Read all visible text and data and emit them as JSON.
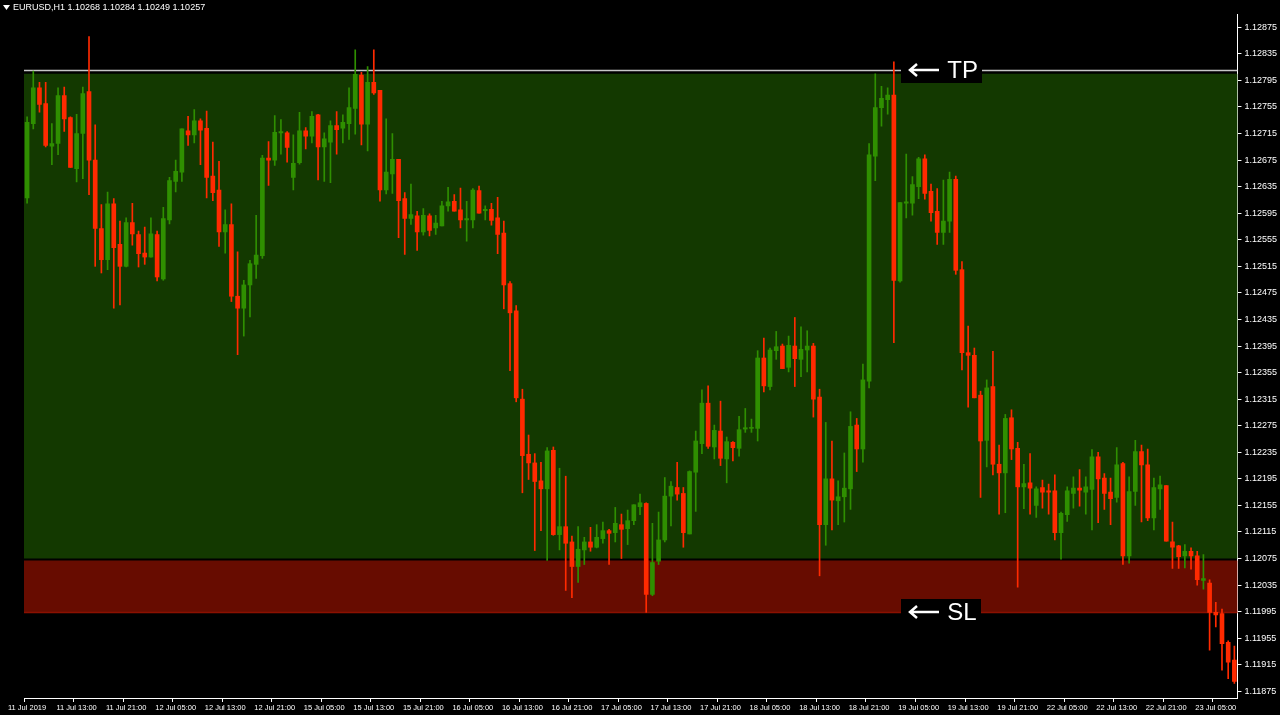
{
  "chart_data": {
    "type": "candlestick",
    "title": "EURUSD,H1  1.10268 1.10284 1.10249 1.10257",
    "categories": [
      "11 Jul 2019",
      null,
      null,
      null,
      null,
      null,
      null,
      null,
      "11 Jul 13:00",
      null,
      null,
      null,
      null,
      null,
      null,
      null,
      "11 Jul 21:00",
      null,
      null,
      null,
      null,
      null,
      null,
      null,
      "12 Jul 05:00",
      null,
      null,
      null,
      null,
      null,
      null,
      null,
      "12 Jul 13:00",
      null,
      null,
      null,
      null,
      null,
      null,
      null,
      "12 Jul 21:00",
      null,
      null,
      null,
      null,
      null,
      null,
      null,
      "15 Jul 05:00",
      null,
      null,
      null,
      null,
      null,
      null,
      null,
      "15 Jul 13:00",
      null,
      null,
      null,
      null,
      null,
      null,
      null,
      "15 Jul 21:00",
      null,
      null,
      null,
      null,
      null,
      null,
      null,
      "16 Jul 05:00",
      null,
      null,
      null,
      null,
      null,
      null,
      null,
      "16 Jul 13:00",
      null,
      null,
      null,
      null,
      null,
      null,
      null,
      "16 Jul 21:00",
      null,
      null,
      null,
      null,
      null,
      null,
      null,
      "17 Jul 05:00",
      null,
      null,
      null,
      null,
      null,
      null,
      null,
      "17 Jul 13:00",
      null,
      null,
      null,
      null,
      null,
      null,
      null,
      "17 Jul 21:00",
      null,
      null,
      null,
      null,
      null,
      null,
      null,
      "18 Jul 05:00",
      null,
      null,
      null,
      null,
      null,
      null,
      null,
      "18 Jul 13:00",
      null,
      null,
      null,
      null,
      null,
      null,
      null,
      "18 Jul 21:00",
      null,
      null,
      null,
      null,
      null,
      null,
      null,
      "19 Jul 05:00",
      null,
      null,
      null,
      null,
      null,
      null,
      null,
      "19 Jul 13:00",
      null,
      null,
      null,
      null,
      null,
      null,
      null,
      "19 Jul 21:00",
      null,
      null,
      null,
      null,
      null,
      null,
      null,
      "22 Jul 05:00",
      null,
      null,
      null,
      null,
      null,
      null,
      null,
      "22 Jul 13:00",
      null,
      null,
      null,
      null,
      null,
      null,
      null,
      "22 Jul 21:00",
      null,
      null,
      null,
      null,
      null,
      null,
      null,
      "23 Jul 05:00",
      null,
      null,
      null
    ],
    "ohlc": [
      [
        1.12618,
        1.1274,
        1.1261,
        1.12732
      ],
      [
        1.1273,
        1.12809,
        1.12722,
        1.12784
      ],
      [
        1.12784,
        1.12792,
        1.12747,
        1.12759
      ],
      [
        1.1276,
        1.12792,
        1.12695,
        1.12697
      ],
      [
        1.12696,
        1.1273,
        1.12668,
        1.127
      ],
      [
        1.127,
        1.12784,
        1.12683,
        1.12772
      ],
      [
        1.12772,
        1.12785,
        1.12718,
        1.12737
      ],
      [
        1.12739,
        1.1274,
        1.12664,
        1.12664
      ],
      [
        1.12662,
        1.12744,
        1.12642,
        1.12715
      ],
      [
        1.12715,
        1.12785,
        1.12647,
        1.12775
      ],
      [
        1.12778,
        1.12861,
        1.12623,
        1.12675
      ],
      [
        1.12675,
        1.12728,
        1.12515,
        1.12572
      ],
      [
        1.12572,
        1.12608,
        1.12505,
        1.12525
      ],
      [
        1.12525,
        1.12627,
        1.1251,
        1.12609
      ],
      [
        1.12609,
        1.12617,
        1.12452,
        1.12543
      ],
      [
        1.12548,
        1.12583,
        1.12457,
        1.12515
      ],
      [
        1.12515,
        1.12588,
        1.12514,
        1.12581
      ],
      [
        1.12581,
        1.1261,
        1.12547,
        1.12564
      ],
      [
        1.12563,
        1.12568,
        1.12514,
        1.12534
      ],
      [
        1.12535,
        1.12574,
        1.12518,
        1.12529
      ],
      [
        1.12529,
        1.12588,
        1.12529,
        1.12564
      ],
      [
        1.12563,
        1.12568,
        1.12493,
        1.12499
      ],
      [
        1.12496,
        1.12604,
        1.12494,
        1.12587
      ],
      [
        1.12585,
        1.12649,
        1.12579,
        1.12644
      ],
      [
        1.12643,
        1.12675,
        1.12627,
        1.12658
      ],
      [
        1.12657,
        1.12722,
        1.12643,
        1.12722
      ],
      [
        1.12719,
        1.12741,
        1.12697,
        1.12713
      ],
      [
        1.12713,
        1.12751,
        1.12701,
        1.12734
      ],
      [
        1.12734,
        1.12737,
        1.12668,
        1.1272
      ],
      [
        1.12723,
        1.12749,
        1.12618,
        1.12649
      ],
      [
        1.12651,
        1.12702,
        1.12614,
        1.12626
      ],
      [
        1.1263,
        1.12673,
        1.12545,
        1.12567
      ],
      [
        1.12567,
        1.126,
        1.12535,
        1.12578
      ],
      [
        1.12578,
        1.12609,
        1.12462,
        1.1247
      ],
      [
        1.1247,
        1.12537,
        1.12382,
        1.12452
      ],
      [
        1.12452,
        1.12494,
        1.1241,
        1.12487
      ],
      [
        1.12487,
        1.12524,
        1.12439,
        1.12519
      ],
      [
        1.12518,
        1.12592,
        1.12497,
        1.12532
      ],
      [
        1.12531,
        1.12682,
        1.12527,
        1.12678
      ],
      [
        1.12678,
        1.12703,
        1.12637,
        1.12675
      ],
      [
        1.12675,
        1.12742,
        1.12667,
        1.12717
      ],
      [
        1.12716,
        1.12736,
        1.12684,
        1.12718
      ],
      [
        1.12716,
        1.12718,
        1.12672,
        1.12694
      ],
      [
        1.12649,
        1.12713,
        1.1263,
        1.1267
      ],
      [
        1.12671,
        1.12747,
        1.12669,
        1.12719
      ],
      [
        1.12719,
        1.12724,
        1.12692,
        1.12711
      ],
      [
        1.12711,
        1.12748,
        1.12701,
        1.12741
      ],
      [
        1.12743,
        1.12744,
        1.12645,
        1.12695
      ],
      [
        1.12695,
        1.12716,
        1.12643,
        1.12707
      ],
      [
        1.12702,
        1.12734,
        1.12641,
        1.12727
      ],
      [
        1.12727,
        1.12748,
        1.12684,
        1.12721
      ],
      [
        1.12723,
        1.12743,
        1.12701,
        1.12732
      ],
      [
        1.1273,
        1.12784,
        1.12706,
        1.12754
      ],
      [
        1.12753,
        1.12841,
        1.12714,
        1.12804
      ],
      [
        1.12803,
        1.12807,
        1.12698,
        1.12729
      ],
      [
        1.12729,
        1.12816,
        1.12689,
        1.12792
      ],
      [
        1.12792,
        1.12841,
        1.12774,
        1.12776
      ],
      [
        1.1278,
        1.1278,
        1.12613,
        1.1263
      ],
      [
        1.1263,
        1.12737,
        1.12624,
        1.12657
      ],
      [
        1.12654,
        1.12715,
        1.12625,
        1.12676
      ],
      [
        1.12676,
        1.12676,
        1.12558,
        1.12614
      ],
      [
        1.12617,
        1.12626,
        1.12533,
        1.12587
      ],
      [
        1.12587,
        1.12639,
        1.12578,
        1.12593
      ],
      [
        1.12591,
        1.12598,
        1.12539,
        1.12567
      ],
      [
        1.12567,
        1.12602,
        1.12562,
        1.12592
      ],
      [
        1.12591,
        1.12594,
        1.12561,
        1.12569
      ],
      [
        1.12573,
        1.12592,
        1.12563,
        1.1258
      ],
      [
        1.12576,
        1.12613,
        1.12576,
        1.12606
      ],
      [
        1.12606,
        1.12634,
        1.12598,
        1.12612
      ],
      [
        1.12613,
        1.12623,
        1.12598,
        1.12598
      ],
      [
        1.126,
        1.12633,
        1.12573,
        1.12585
      ],
      [
        1.12585,
        1.12613,
        1.12553,
        1.12587
      ],
      [
        1.12585,
        1.12632,
        1.12573,
        1.1263
      ],
      [
        1.12629,
        1.12636,
        1.12595,
        1.12595
      ],
      [
        1.12599,
        1.12606,
        1.12585,
        1.12601
      ],
      [
        1.12601,
        1.1261,
        1.12577,
        1.12584
      ],
      [
        1.12588,
        1.12619,
        1.12534,
        1.12563
      ],
      [
        1.12565,
        1.12583,
        1.12451,
        1.12487
      ],
      [
        1.12489,
        1.12492,
        1.12358,
        1.12445
      ],
      [
        1.12448,
        1.12456,
        1.12311,
        1.12317
      ],
      [
        1.12315,
        1.1233,
        1.12174,
        1.1223
      ],
      [
        1.12232,
        1.12261,
        1.12194,
        1.12219
      ],
      [
        1.12219,
        1.12233,
        1.12087,
        1.12191
      ],
      [
        1.12192,
        1.1222,
        1.12117,
        1.1218
      ],
      [
        1.1218,
        1.12242,
        1.12072,
        1.12237
      ],
      [
        1.12238,
        1.12243,
        1.1211,
        1.12111
      ],
      [
        1.12111,
        1.12211,
        1.12088,
        1.12123
      ],
      [
        1.12123,
        1.12199,
        1.12027,
        1.12098
      ],
      [
        1.121,
        1.12109,
        1.12016,
        1.12063
      ],
      [
        1.12063,
        1.12123,
        1.12039,
        1.12089
      ],
      [
        1.12088,
        1.12107,
        1.12066,
        1.121
      ],
      [
        1.121,
        1.12122,
        1.12086,
        1.12092
      ],
      [
        1.12092,
        1.12126,
        1.12091,
        1.12107
      ],
      [
        1.12105,
        1.1213,
        1.12098,
        1.12117
      ],
      [
        1.12117,
        1.12119,
        1.12066,
        1.12113
      ],
      [
        1.12114,
        1.12152,
        1.121,
        1.12128
      ],
      [
        1.12126,
        1.12142,
        1.12075,
        1.12119
      ],
      [
        1.1212,
        1.12148,
        1.12096,
        1.12132
      ],
      [
        1.12132,
        1.12156,
        1.12126,
        1.12156
      ],
      [
        1.12153,
        1.12172,
        1.12141,
        1.12159
      ],
      [
        1.12158,
        1.12159,
        1.11994,
        1.12021
      ],
      [
        1.12021,
        1.12128,
        1.12019,
        1.12069
      ],
      [
        1.12071,
        1.12145,
        1.12066,
        1.12103
      ],
      [
        1.12103,
        1.12197,
        1.121,
        1.12169
      ],
      [
        1.12169,
        1.12191,
        1.12124,
        1.12184
      ],
      [
        1.12182,
        1.1222,
        1.12163,
        1.12172
      ],
      [
        1.12173,
        1.12182,
        1.12092,
        1.12114
      ],
      [
        1.12112,
        1.12207,
        1.12112,
        1.12206
      ],
      [
        1.12205,
        1.12267,
        1.12146,
        1.12252
      ],
      [
        1.12248,
        1.12329,
        1.12233,
        1.12309
      ],
      [
        1.12309,
        1.12335,
        1.12241,
        1.12244
      ],
      [
        1.12243,
        1.12276,
        1.12225,
        1.12268
      ],
      [
        1.12267,
        1.12312,
        1.12215,
        1.12226
      ],
      [
        1.12225,
        1.12258,
        1.12189,
        1.12251
      ],
      [
        1.1225,
        1.12251,
        1.12222,
        1.12242
      ],
      [
        1.12241,
        1.12289,
        1.12229,
        1.12269
      ],
      [
        1.1227,
        1.12301,
        1.12265,
        1.12272
      ],
      [
        1.12271,
        1.12285,
        1.12265,
        1.12272
      ],
      [
        1.12271,
        1.12388,
        1.12252,
        1.12377
      ],
      [
        1.12377,
        1.12407,
        1.12326,
        1.12335
      ],
      [
        1.12334,
        1.12392,
        1.12329,
        1.12389
      ],
      [
        1.12388,
        1.12417,
        1.12375,
        1.12394
      ],
      [
        1.12395,
        1.12398,
        1.12361,
        1.12361
      ],
      [
        1.12363,
        1.1241,
        1.12356,
        1.12396
      ],
      [
        1.12395,
        1.12438,
        1.12334,
        1.12376
      ],
      [
        1.12375,
        1.12424,
        1.12349,
        1.1239
      ],
      [
        1.12389,
        1.12418,
        1.12356,
        1.12395
      ],
      [
        1.12395,
        1.12399,
        1.12288,
        1.12315
      ],
      [
        1.12318,
        1.1233,
        1.12049,
        1.12126
      ],
      [
        1.12126,
        1.1228,
        1.12095,
        1.12195
      ],
      [
        1.12195,
        1.12252,
        1.12118,
        1.12163
      ],
      [
        1.12162,
        1.12192,
        1.12126,
        1.12168
      ],
      [
        1.12168,
        1.12234,
        1.1213,
        1.12181
      ],
      [
        1.1218,
        1.12296,
        1.12149,
        1.12274
      ],
      [
        1.12276,
        1.12286,
        1.12206,
        1.1224
      ],
      [
        1.1224,
        1.12368,
        1.1222,
        1.12344
      ],
      [
        1.12342,
        1.127,
        1.12332,
        1.12683
      ],
      [
        1.12681,
        1.12805,
        1.12644,
        1.12754
      ],
      [
        1.12754,
        1.12786,
        1.12726,
        1.12768
      ],
      [
        1.12766,
        1.12784,
        1.12744,
        1.12773
      ],
      [
        1.12773,
        1.12823,
        1.124,
        1.12494
      ],
      [
        1.12493,
        1.12611,
        1.12491,
        1.12611
      ],
      [
        1.1261,
        1.12684,
        1.12588,
        1.12612
      ],
      [
        1.1261,
        1.1265,
        1.12592,
        1.12638
      ],
      [
        1.12635,
        1.12679,
        1.12617,
        1.12677
      ],
      [
        1.12677,
        1.12683,
        1.12616,
        1.12625
      ],
      [
        1.12628,
        1.12639,
        1.12583,
        1.12596
      ],
      [
        1.12598,
        1.12632,
        1.12548,
        1.12566
      ],
      [
        1.12566,
        1.12645,
        1.12548,
        1.12583
      ],
      [
        1.12583,
        1.12657,
        1.12566,
        1.12646
      ],
      [
        1.12646,
        1.12651,
        1.12503,
        1.12509
      ],
      [
        1.1251,
        1.12522,
        1.12359,
        1.12385
      ],
      [
        1.12385,
        1.12425,
        1.12303,
        1.12381
      ],
      [
        1.12381,
        1.12392,
        1.12317,
        1.12317
      ],
      [
        1.12321,
        1.12327,
        1.12167,
        1.12252
      ],
      [
        1.12253,
        1.12344,
        1.12213,
        1.12332
      ],
      [
        1.12334,
        1.12387,
        1.12201,
        1.12217
      ],
      [
        1.12217,
        1.12246,
        1.12142,
        1.12204
      ],
      [
        1.12204,
        1.12292,
        1.12144,
        1.12286
      ],
      [
        1.12287,
        1.12299,
        1.12224,
        1.1224
      ],
      [
        1.12241,
        1.1225,
        1.12032,
        1.12183
      ],
      [
        1.12183,
        1.12217,
        1.1215,
        1.12188
      ],
      [
        1.12189,
        1.12233,
        1.12142,
        1.12181
      ],
      [
        1.12155,
        1.12183,
        1.12137,
        1.1218
      ],
      [
        1.12182,
        1.12193,
        1.12151,
        1.12175
      ],
      [
        1.12177,
        1.12187,
        1.12142,
        1.12175
      ],
      [
        1.12177,
        1.12201,
        1.12103,
        1.12114
      ],
      [
        1.12114,
        1.12145,
        1.12074,
        1.12143
      ],
      [
        1.12141,
        1.12183,
        1.12131,
        1.12177
      ],
      [
        1.12173,
        1.12198,
        1.12151,
        1.12181
      ],
      [
        1.12181,
        1.12209,
        1.12154,
        1.12178
      ],
      [
        1.12175,
        1.12198,
        1.12142,
        1.12183
      ],
      [
        1.12179,
        1.12239,
        1.12118,
        1.12228
      ],
      [
        1.12228,
        1.12235,
        1.12129,
        1.12195
      ],
      [
        1.12196,
        1.12203,
        1.12149,
        1.12173
      ],
      [
        1.12175,
        1.12196,
        1.12126,
        1.12165
      ],
      [
        1.12167,
        1.12242,
        1.1216,
        1.12216
      ],
      [
        1.12218,
        1.1222,
        1.12066,
        1.12079
      ],
      [
        1.12079,
        1.12198,
        1.12068,
        1.12176
      ],
      [
        1.12176,
        1.12253,
        1.12155,
        1.12236
      ],
      [
        1.12236,
        1.12246,
        1.1213,
        1.12216
      ],
      [
        1.12216,
        1.1224,
        1.12132,
        1.12136
      ],
      [
        1.12136,
        1.12196,
        1.12118,
        1.12182
      ],
      [
        1.1218,
        1.12199,
        1.12149,
        1.12186
      ],
      [
        1.12185,
        1.12185,
        1.12101,
        1.12101
      ],
      [
        1.121,
        1.1213,
        1.1206,
        1.12092
      ],
      [
        1.12094,
        1.12095,
        1.1206,
        1.12078
      ],
      [
        1.12079,
        1.12096,
        1.12061,
        1.12086
      ],
      [
        1.12086,
        1.12091,
        1.12059,
        1.12079
      ],
      [
        1.12079,
        1.12086,
        1.12035,
        1.12043
      ],
      [
        1.12042,
        1.12081,
        1.12029,
        1.12045
      ],
      [
        1.12038,
        1.12043,
        1.11937,
        1.11994
      ],
      [
        1.11994,
        1.12009,
        1.11972,
        1.1199
      ],
      [
        1.11992,
        1.11999,
        1.11907,
        1.11947
      ],
      [
        1.11949,
        1.11951,
        1.11894,
        1.11919
      ],
      [
        1.11922,
        1.11943,
        1.11887,
        1.1189
      ]
    ],
    "ylim": [
      1.11865,
      1.12895
    ],
    "yticks": [
      1.11875,
      1.11915,
      1.11955,
      1.11995,
      1.12035,
      1.12075,
      1.12115,
      1.12155,
      1.12195,
      1.12235,
      1.12275,
      1.12315,
      1.12355,
      1.12395,
      1.12435,
      1.12475,
      1.12515,
      1.12555,
      1.12595,
      1.12635,
      1.12675,
      1.12715,
      1.12755,
      1.12795,
      1.12835,
      1.12875
    ],
    "bands": [
      {
        "axis": "y",
        "from": 1.12075,
        "to": 1.12805,
        "color": "#1a4c00"
      },
      {
        "axis": "y",
        "from": 1.11994,
        "to": 1.12072,
        "color": "#8a1000"
      }
    ],
    "ref_lines": [
      {
        "axis": "y",
        "value": 1.1281,
        "label": "TP",
        "color": "#c8c8c8"
      },
      {
        "axis": "y",
        "value": 1.11994,
        "label": "SL",
        "color": "#8a1000"
      }
    ]
  }
}
